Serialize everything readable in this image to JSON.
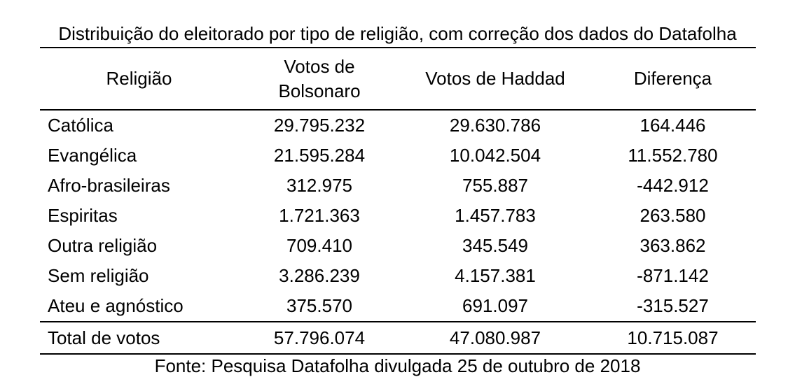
{
  "title": "Distribuição do eleitorado por tipo de religião, com correção dos dados do Datafolha",
  "table": {
    "headers": [
      "Religião",
      "Votos de Bolsonaro",
      "Votos de Haddad",
      "Diferença"
    ],
    "rows": [
      [
        "Católica",
        "29.795.232",
        "29.630.786",
        "164.446"
      ],
      [
        "Evangélica",
        "21.595.284",
        "10.042.504",
        "11.552.780"
      ],
      [
        "Afro-brasileiras",
        "312.975",
        "755.887",
        "-442.912"
      ],
      [
        "Espiritas",
        "1.721.363",
        "1.457.783",
        "263.580"
      ],
      [
        "Outra religião",
        "709.410",
        "345.549",
        "363.862"
      ],
      [
        "Sem religião",
        "3.286.239",
        "4.157.381",
        "-871.142"
      ],
      [
        "Ateu e agnóstico",
        "375.570",
        "691.097",
        "-315.527"
      ]
    ],
    "total": [
      "Total de votos",
      "57.796.074",
      "47.080.987",
      "10.715.087"
    ]
  },
  "source": "Fonte: Pesquisa Datafolha divulgada 25 de outubro de 2018"
}
